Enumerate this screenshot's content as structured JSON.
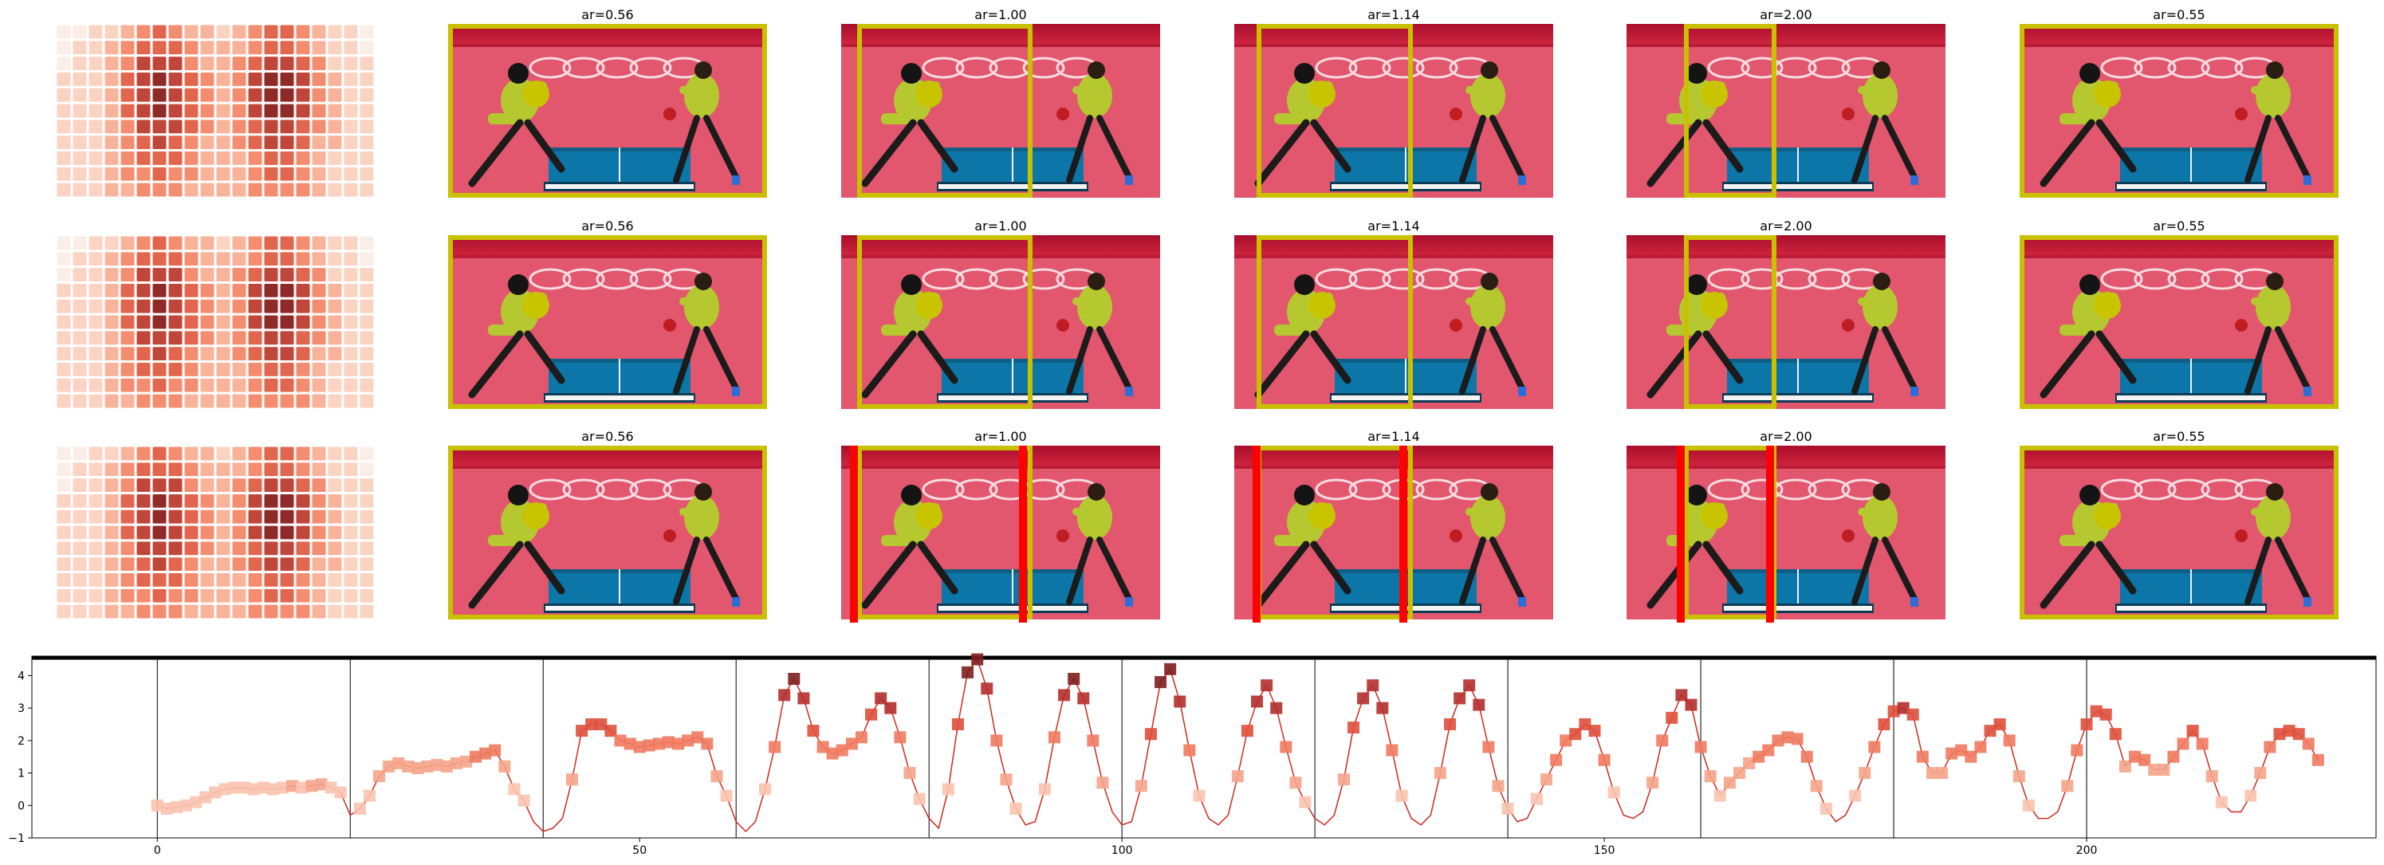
{
  "panels": {
    "title_prefix": "ar=",
    "column_titles": [
      "",
      "0.56",
      "1.00",
      "1.14",
      "2.00",
      "0.55"
    ],
    "crop_color": "#c9c000",
    "seam_color": "#ff0000",
    "rows": 3,
    "crops": [
      null,
      {
        "from": 0.0,
        "to": 1.0
      },
      {
        "from": 0.05,
        "to": 0.6
      },
      {
        "from": 0.07,
        "to": 0.56
      },
      {
        "from": 0.18,
        "to": 0.47
      },
      {
        "from": 0.0,
        "to": 1.0
      }
    ],
    "seams_row3": [
      null,
      null,
      [
        0.04,
        0.57
      ],
      [
        0.07,
        0.53
      ],
      [
        0.17,
        0.45
      ],
      null
    ]
  },
  "heatmap": {
    "cols": 20,
    "rows": 11,
    "palette": [
      "#fbeee8",
      "#fbd3c2",
      "#f9b39a",
      "#f48d70",
      "#e2664e",
      "#c0463a",
      "#8e2a28"
    ]
  },
  "chart_data": {
    "type": "line",
    "title": "",
    "xlabel": "",
    "ylabel": "",
    "xlim": [
      -13,
      230
    ],
    "ylim": [
      -1,
      4.6
    ],
    "xticks": [
      0,
      50,
      100,
      150,
      200
    ],
    "yticks": [
      -1,
      0,
      1,
      2,
      3,
      4
    ],
    "vlines": [
      0,
      20,
      40,
      60,
      80,
      100,
      120,
      140,
      160,
      180,
      200
    ],
    "hline": 4.55,
    "line_color": "#cc2a20",
    "marker_palette": [
      "#f9c3b0",
      "#f5a48a",
      "#ef7a5f",
      "#de4f3b",
      "#b22f2c",
      "#7f1d1d"
    ],
    "series": [
      {
        "values": [
          0,
          -0.1,
          -0.05,
          0,
          0.1,
          0.25,
          0.4,
          0.5,
          0.55,
          0.55,
          0.5,
          0.55,
          0.5,
          0.55,
          0.6,
          0.55,
          0.6,
          0.65,
          0.55,
          0.4,
          -0.3,
          -0.1,
          0.3,
          0.9,
          1.2,
          1.3,
          1.2,
          1.15,
          1.2,
          1.25,
          1.2,
          1.3,
          1.35,
          1.5,
          1.6,
          1.7,
          1.2,
          0.5,
          0.15,
          -0.5,
          -0.8,
          -0.7,
          -0.4,
          0.8,
          2.3,
          2.5,
          2.5,
          2.3,
          2.0,
          1.9,
          1.8,
          1.85,
          1.9,
          1.95,
          1.9,
          2.0,
          2.1,
          1.9,
          0.9,
          0.3,
          -0.5,
          -0.8,
          -0.5,
          0.5,
          1.8,
          3.4,
          3.9,
          3.3,
          2.3,
          1.8,
          1.6,
          1.7,
          1.9,
          2.1,
          2.8,
          3.3,
          3.0,
          2.1,
          1.0,
          0.2,
          -0.4,
          -0.7,
          0.5,
          2.5,
          4.1,
          4.5,
          3.6,
          2.0,
          0.8,
          -0.1,
          -0.6,
          -0.5,
          0.5,
          2.1,
          3.4,
          3.9,
          3.3,
          2.0,
          0.7,
          -0.2,
          -0.6,
          -0.5,
          0.6,
          2.2,
          3.8,
          4.2,
          3.2,
          1.7,
          0.3,
          -0.4,
          -0.6,
          -0.3,
          0.9,
          2.3,
          3.2,
          3.7,
          3.0,
          1.8,
          0.7,
          0.1,
          -0.4,
          -0.6,
          -0.3,
          0.8,
          2.4,
          3.3,
          3.7,
          3.0,
          1.7,
          0.3,
          -0.4,
          -0.6,
          -0.3,
          1.0,
          2.5,
          3.3,
          3.7,
          3.1,
          1.8,
          0.6,
          -0.1,
          -0.5,
          -0.4,
          0.2,
          0.8,
          1.4,
          2.0,
          2.2,
          2.5,
          2.3,
          1.4,
          0.4,
          -0.3,
          -0.4,
          -0.2,
          0.7,
          2.0,
          2.7,
          3.4,
          3.1,
          1.8,
          0.9,
          0.3,
          0.7,
          1.0,
          1.3,
          1.5,
          1.7,
          2.0,
          2.1,
          2.05,
          1.5,
          0.6,
          -0.1,
          -0.5,
          -0.3,
          0.3,
          1.0,
          1.8,
          2.5,
          2.9,
          3.0,
          2.8,
          1.5,
          1.0,
          1.0,
          1.6,
          1.7,
          1.5,
          1.8,
          2.3,
          2.5,
          2.0,
          0.9,
          0.0,
          -0.4,
          -0.4,
          -0.2,
          0.6,
          1.7,
          2.5,
          2.9,
          2.8,
          2.2,
          1.2,
          1.5,
          1.4,
          1.1,
          1.1,
          1.5,
          1.9,
          2.3,
          1.9,
          0.9,
          0.1,
          -0.2,
          -0.2,
          0.3,
          1.0,
          1.8,
          2.2,
          2.3,
          2.2,
          1.9,
          1.4
        ]
      }
    ]
  }
}
